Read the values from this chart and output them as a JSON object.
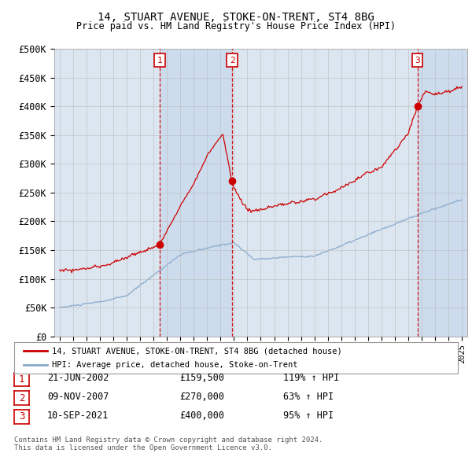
{
  "title": "14, STUART AVENUE, STOKE-ON-TRENT, ST4 8BG",
  "subtitle": "Price paid vs. HM Land Registry's House Price Index (HPI)",
  "ylabel_ticks": [
    "£0",
    "£50K",
    "£100K",
    "£150K",
    "£200K",
    "£250K",
    "£300K",
    "£350K",
    "£400K",
    "£450K",
    "£500K"
  ],
  "ytick_values": [
    0,
    50000,
    100000,
    150000,
    200000,
    250000,
    300000,
    350000,
    400000,
    450000,
    500000
  ],
  "ylim": [
    0,
    500000
  ],
  "xlim_start": 1994.6,
  "xlim_end": 2025.4,
  "sale_dates_decimal": [
    2002.47,
    2007.86,
    2021.69
  ],
  "sale_prices": [
    159500,
    270000,
    400000
  ],
  "sale_labels": [
    "1",
    "2",
    "3"
  ],
  "sale_date_strings": [
    "21-JUN-2002",
    "09-NOV-2007",
    "10-SEP-2021"
  ],
  "sale_price_strings": [
    "£159,500",
    "£270,000",
    "£400,000"
  ],
  "sale_hpi_strings": [
    "119% ↑ HPI",
    "63% ↑ HPI",
    "95% ↑ HPI"
  ],
  "legend_property": "14, STUART AVENUE, STOKE-ON-TRENT, ST4 8BG (detached house)",
  "legend_hpi": "HPI: Average price, detached house, Stoke-on-Trent",
  "footer": "Contains HM Land Registry data © Crown copyright and database right 2024.\nThis data is licensed under the Open Government Licence v3.0.",
  "property_color": "#cc0000",
  "hpi_color": "#88aacc",
  "background_color": "#dce6f1",
  "shade_color": "#c8d8ec",
  "grid_color": "#bbbbbb",
  "dashed_line_color": "#cc0000",
  "marker_box_color": "#cc0000"
}
